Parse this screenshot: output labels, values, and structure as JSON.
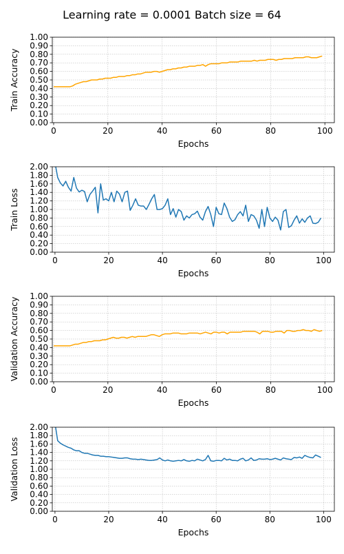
{
  "figure": {
    "title": "Learning rate = 0.0001 Batch size = 64"
  },
  "chart_data": [
    {
      "type": "line",
      "xlabel": "Epochs",
      "ylabel": "Train Accuracy",
      "xlim": [
        -0.5,
        103.5
      ],
      "ylim": [
        0.0,
        1.0
      ],
      "xticks": [
        0,
        20,
        40,
        60,
        80,
        100
      ],
      "yticks": [
        0.0,
        0.1,
        0.2,
        0.3,
        0.4,
        0.5,
        0.6,
        0.7,
        0.8,
        0.9,
        1.0
      ],
      "ytick_labels": [
        "0.00",
        "0.10",
        "0.20",
        "0.30",
        "0.40",
        "0.50",
        "0.60",
        "0.70",
        "0.80",
        "0.90",
        "1.00"
      ],
      "grid": true,
      "color": "#FFA500",
      "series": [
        {
          "x": [
            0,
            1,
            2,
            3,
            4,
            5,
            6,
            7,
            8,
            9,
            10,
            11,
            12,
            13,
            14,
            15,
            16,
            17,
            18,
            19,
            20,
            21,
            22,
            23,
            24,
            25,
            26,
            27,
            28,
            29,
            30,
            31,
            32,
            33,
            34,
            35,
            36,
            37,
            38,
            39,
            40,
            41,
            42,
            43,
            44,
            45,
            46,
            47,
            48,
            49,
            50,
            51,
            52,
            53,
            54,
            55,
            56,
            57,
            58,
            59,
            60,
            61,
            62,
            63,
            64,
            65,
            66,
            67,
            68,
            69,
            70,
            71,
            72,
            73,
            74,
            75,
            76,
            77,
            78,
            79,
            80,
            81,
            82,
            83,
            84,
            85,
            86,
            87,
            88,
            89,
            90,
            91,
            92,
            93,
            94,
            95,
            96,
            97,
            98,
            99
          ],
          "values": [
            0.42,
            0.42,
            0.42,
            0.42,
            0.42,
            0.42,
            0.42,
            0.43,
            0.45,
            0.46,
            0.47,
            0.48,
            0.48,
            0.49,
            0.5,
            0.5,
            0.5,
            0.51,
            0.51,
            0.52,
            0.52,
            0.52,
            0.53,
            0.53,
            0.54,
            0.54,
            0.54,
            0.55,
            0.55,
            0.56,
            0.56,
            0.57,
            0.57,
            0.58,
            0.59,
            0.59,
            0.59,
            0.6,
            0.6,
            0.59,
            0.6,
            0.61,
            0.62,
            0.62,
            0.63,
            0.63,
            0.64,
            0.64,
            0.65,
            0.65,
            0.66,
            0.66,
            0.66,
            0.67,
            0.67,
            0.68,
            0.66,
            0.68,
            0.69,
            0.69,
            0.69,
            0.69,
            0.7,
            0.7,
            0.7,
            0.71,
            0.71,
            0.71,
            0.71,
            0.72,
            0.72,
            0.72,
            0.72,
            0.72,
            0.73,
            0.72,
            0.73,
            0.73,
            0.73,
            0.74,
            0.74,
            0.74,
            0.73,
            0.74,
            0.74,
            0.75,
            0.75,
            0.75,
            0.75,
            0.76,
            0.76,
            0.76,
            0.76,
            0.77,
            0.77,
            0.76,
            0.76,
            0.76,
            0.77,
            0.78
          ]
        }
      ]
    },
    {
      "type": "line",
      "xlabel": "Epochs",
      "ylabel": "Train Loss",
      "xlim": [
        -1,
        104
      ],
      "ylim": [
        0.0,
        2.0
      ],
      "xticks": [
        0,
        20,
        40,
        60,
        80,
        100
      ],
      "yticks": [
        0.0,
        0.2,
        0.4,
        0.6,
        0.8,
        1.0,
        1.2,
        1.4,
        1.6,
        1.8,
        2.0
      ],
      "ytick_labels": [
        "0.00",
        "0.20",
        "0.40",
        "0.60",
        "0.80",
        "1.00",
        "1.20",
        "1.40",
        "1.60",
        "1.80",
        "2.00"
      ],
      "grid": true,
      "color": "#1f77b4",
      "series": [
        {
          "x": [
            0,
            1,
            2,
            3,
            4,
            5,
            6,
            7,
            8,
            9,
            10,
            11,
            12,
            13,
            14,
            15,
            16,
            17,
            18,
            19,
            20,
            21,
            22,
            23,
            24,
            25,
            26,
            27,
            28,
            29,
            30,
            31,
            32,
            33,
            34,
            35,
            36,
            37,
            38,
            39,
            40,
            41,
            42,
            43,
            44,
            45,
            46,
            47,
            48,
            49,
            50,
            51,
            52,
            53,
            54,
            55,
            56,
            57,
            58,
            59,
            60,
            61,
            62,
            63,
            64,
            65,
            66,
            67,
            68,
            69,
            70,
            71,
            72,
            73,
            74,
            75,
            76,
            77,
            78,
            79,
            80,
            81,
            82,
            83,
            84,
            85,
            86,
            87,
            88,
            89,
            90,
            91,
            92,
            93,
            94,
            95,
            96,
            97,
            98,
            99
          ],
          "values": [
            2.1,
            1.75,
            1.62,
            1.55,
            1.66,
            1.52,
            1.43,
            1.75,
            1.5,
            1.41,
            1.45,
            1.42,
            1.18,
            1.35,
            1.43,
            1.52,
            0.92,
            1.6,
            1.22,
            1.25,
            1.2,
            1.4,
            1.18,
            1.43,
            1.36,
            1.18,
            1.4,
            1.43,
            0.98,
            1.1,
            1.25,
            1.1,
            1.08,
            1.08,
            1.0,
            1.12,
            1.25,
            1.35,
            1.0,
            1.0,
            1.02,
            1.1,
            1.25,
            0.88,
            1.02,
            0.82,
            1.0,
            0.95,
            0.75,
            0.85,
            0.8,
            0.88,
            0.9,
            0.96,
            0.82,
            0.75,
            0.95,
            1.07,
            0.88,
            0.6,
            1.05,
            0.9,
            0.88,
            1.15,
            1.02,
            0.82,
            0.72,
            0.76,
            0.88,
            0.95,
            0.85,
            1.1,
            0.72,
            0.88,
            0.85,
            0.75,
            0.56,
            1.0,
            0.6,
            1.05,
            0.8,
            0.72,
            0.82,
            0.75,
            0.52,
            0.95,
            1.0,
            0.58,
            0.62,
            0.75,
            0.85,
            0.68,
            0.78,
            0.7,
            0.8,
            0.85,
            0.68,
            0.67,
            0.7,
            0.8
          ]
        }
      ]
    },
    {
      "type": "line",
      "xlabel": "Epochs",
      "ylabel": "Validation Accuracy",
      "xlim": [
        -0.5,
        103.5
      ],
      "ylim": [
        0.0,
        1.0
      ],
      "xticks": [
        0,
        20,
        40,
        60,
        80,
        100
      ],
      "yticks": [
        0.0,
        0.1,
        0.2,
        0.3,
        0.4,
        0.5,
        0.6,
        0.7,
        0.8,
        0.9,
        1.0
      ],
      "ytick_labels": [
        "0.00",
        "0.10",
        "0.20",
        "0.30",
        "0.40",
        "0.50",
        "0.60",
        "0.70",
        "0.80",
        "0.90",
        "1.00"
      ],
      "grid": true,
      "color": "#FFA500",
      "series": [
        {
          "x": [
            0,
            1,
            2,
            3,
            4,
            5,
            6,
            7,
            8,
            9,
            10,
            11,
            12,
            13,
            14,
            15,
            16,
            17,
            18,
            19,
            20,
            21,
            22,
            23,
            24,
            25,
            26,
            27,
            28,
            29,
            30,
            31,
            32,
            33,
            34,
            35,
            36,
            37,
            38,
            39,
            40,
            41,
            42,
            43,
            44,
            45,
            46,
            47,
            48,
            49,
            50,
            51,
            52,
            53,
            54,
            55,
            56,
            57,
            58,
            59,
            60,
            61,
            62,
            63,
            64,
            65,
            66,
            67,
            68,
            69,
            70,
            71,
            72,
            73,
            74,
            75,
            76,
            77,
            78,
            79,
            80,
            81,
            82,
            83,
            84,
            85,
            86,
            87,
            88,
            89,
            90,
            91,
            92,
            93,
            94,
            95,
            96,
            97,
            98,
            99
          ],
          "values": [
            0.42,
            0.42,
            0.42,
            0.42,
            0.42,
            0.42,
            0.42,
            0.43,
            0.44,
            0.44,
            0.45,
            0.46,
            0.46,
            0.47,
            0.47,
            0.48,
            0.48,
            0.48,
            0.49,
            0.49,
            0.5,
            0.51,
            0.52,
            0.51,
            0.51,
            0.52,
            0.52,
            0.51,
            0.52,
            0.53,
            0.52,
            0.53,
            0.53,
            0.53,
            0.53,
            0.54,
            0.55,
            0.55,
            0.54,
            0.53,
            0.55,
            0.56,
            0.56,
            0.56,
            0.57,
            0.57,
            0.57,
            0.56,
            0.56,
            0.56,
            0.57,
            0.57,
            0.57,
            0.57,
            0.56,
            0.57,
            0.58,
            0.57,
            0.56,
            0.58,
            0.58,
            0.57,
            0.58,
            0.58,
            0.56,
            0.58,
            0.58,
            0.58,
            0.58,
            0.58,
            0.59,
            0.59,
            0.59,
            0.59,
            0.59,
            0.58,
            0.56,
            0.59,
            0.59,
            0.59,
            0.58,
            0.58,
            0.59,
            0.59,
            0.59,
            0.57,
            0.6,
            0.6,
            0.59,
            0.59,
            0.6,
            0.6,
            0.61,
            0.6,
            0.6,
            0.59,
            0.61,
            0.6,
            0.59,
            0.6
          ]
        }
      ]
    },
    {
      "type": "line",
      "xlabel": "Epochs",
      "ylabel": "Validation Loss",
      "xlim": [
        -1,
        104
      ],
      "ylim": [
        0.0,
        2.0
      ],
      "xticks": [
        0,
        20,
        40,
        60,
        80,
        100
      ],
      "yticks": [
        0.0,
        0.2,
        0.4,
        0.6,
        0.8,
        1.0,
        1.2,
        1.4,
        1.6,
        1.8,
        2.0
      ],
      "ytick_labels": [
        "0.00",
        "0.20",
        "0.40",
        "0.60",
        "0.80",
        "1.00",
        "1.20",
        "1.40",
        "1.60",
        "1.80",
        "2.00"
      ],
      "grid": true,
      "color": "#1f77b4",
      "series": [
        {
          "x": [
            0,
            1,
            2,
            3,
            4,
            5,
            6,
            7,
            8,
            9,
            10,
            11,
            12,
            13,
            14,
            15,
            16,
            17,
            18,
            19,
            20,
            21,
            22,
            23,
            24,
            25,
            26,
            27,
            28,
            29,
            30,
            31,
            32,
            33,
            34,
            35,
            36,
            37,
            38,
            39,
            40,
            41,
            42,
            43,
            44,
            45,
            46,
            47,
            48,
            49,
            50,
            51,
            52,
            53,
            54,
            55,
            56,
            57,
            58,
            59,
            60,
            61,
            62,
            63,
            64,
            65,
            66,
            67,
            68,
            69,
            70,
            71,
            72,
            73,
            74,
            75,
            76,
            77,
            78,
            79,
            80,
            81,
            82,
            83,
            84,
            85,
            86,
            87,
            88,
            89,
            90,
            91,
            92,
            93,
            94,
            95,
            96,
            97,
            98,
            99
          ],
          "values": [
            2.1,
            1.68,
            1.62,
            1.58,
            1.55,
            1.52,
            1.5,
            1.46,
            1.44,
            1.44,
            1.4,
            1.38,
            1.38,
            1.36,
            1.34,
            1.33,
            1.33,
            1.31,
            1.31,
            1.3,
            1.3,
            1.29,
            1.28,
            1.27,
            1.26,
            1.26,
            1.27,
            1.27,
            1.25,
            1.24,
            1.24,
            1.23,
            1.24,
            1.23,
            1.22,
            1.21,
            1.21,
            1.22,
            1.23,
            1.27,
            1.22,
            1.2,
            1.22,
            1.2,
            1.19,
            1.2,
            1.21,
            1.2,
            1.23,
            1.2,
            1.19,
            1.21,
            1.2,
            1.24,
            1.22,
            1.2,
            1.23,
            1.33,
            1.2,
            1.19,
            1.21,
            1.21,
            1.2,
            1.26,
            1.22,
            1.24,
            1.21,
            1.21,
            1.2,
            1.24,
            1.26,
            1.2,
            1.22,
            1.27,
            1.21,
            1.22,
            1.25,
            1.24,
            1.24,
            1.25,
            1.23,
            1.24,
            1.26,
            1.24,
            1.22,
            1.27,
            1.25,
            1.24,
            1.23,
            1.28,
            1.27,
            1.29,
            1.26,
            1.33,
            1.3,
            1.28,
            1.27,
            1.34,
            1.31,
            1.28
          ]
        }
      ]
    }
  ]
}
